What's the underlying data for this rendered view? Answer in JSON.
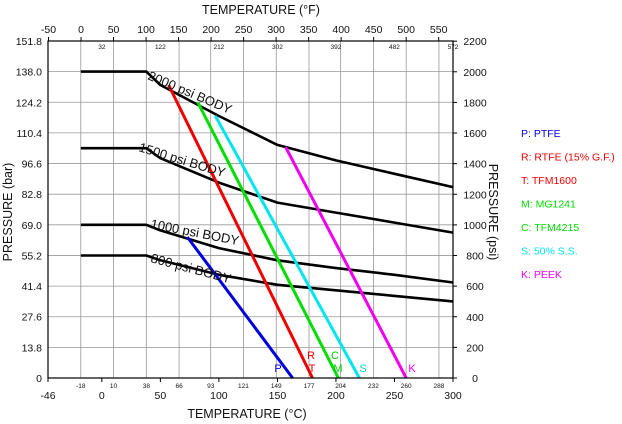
{
  "chart_data": {
    "type": "line",
    "top_axis_title": "TEMPERATURE (°F)",
    "bottom_axis_title": "TEMPERATURE (°C)",
    "left_axis_title": "PRESSURE (bar)",
    "right_axis_title": "PRESSURE (psi)",
    "x_range_c": [
      -46,
      300
    ],
    "y_range_bar": [
      0,
      151.8
    ],
    "bottom_major_ticks": [
      "-46",
      "0",
      "50",
      "100",
      "150",
      "200",
      "250",
      "300"
    ],
    "bottom_minor_ticks": [
      "-18",
      "10",
      "38",
      "66",
      "93",
      "121",
      "149",
      "177",
      "204",
      "232",
      "260",
      "288"
    ],
    "top_major_ticks": [
      "-50",
      "0",
      "50",
      "100",
      "150",
      "200",
      "250",
      "300",
      "350",
      "400",
      "450",
      "500",
      "550"
    ],
    "top_minor_ticks": [
      "32",
      "122",
      "212",
      "302",
      "392",
      "482",
      "572"
    ],
    "left_ticks": [
      "151.8",
      "138.0",
      "124.2",
      "110.4",
      "96.6",
      "82.8",
      "69.0",
      "55.2",
      "41.4",
      "27.6",
      "13.8",
      "0"
    ],
    "right_ticks": [
      "2200",
      "2000",
      "1800",
      "1600",
      "1400",
      "1200",
      "1000",
      "800",
      "600",
      "400",
      "200",
      "0"
    ],
    "body_curves": [
      {
        "label": "2000 psi BODY",
        "points": [
          [
            -18,
            138
          ],
          [
            38,
            138
          ],
          [
            50,
            132
          ],
          [
            100,
            118
          ],
          [
            150,
            105
          ],
          [
            200,
            98
          ],
          [
            250,
            92
          ],
          [
            300,
            86
          ]
        ]
      },
      {
        "label": "1500 psi BODY",
        "points": [
          [
            -18,
            103.5
          ],
          [
            38,
            103.5
          ],
          [
            50,
            99
          ],
          [
            100,
            88
          ],
          [
            150,
            79
          ],
          [
            200,
            74.5
          ],
          [
            250,
            70
          ],
          [
            300,
            65.5
          ]
        ]
      },
      {
        "label": "1000 psi BODY",
        "points": [
          [
            -18,
            69
          ],
          [
            38,
            69
          ],
          [
            50,
            66.5
          ],
          [
            100,
            58.5
          ],
          [
            150,
            53
          ],
          [
            200,
            49.5
          ],
          [
            250,
            46.5
          ],
          [
            300,
            43
          ]
        ]
      },
      {
        "label": "800 psi BODY",
        "points": [
          [
            -18,
            55.2
          ],
          [
            38,
            55.2
          ],
          [
            50,
            53
          ],
          [
            100,
            46.5
          ],
          [
            150,
            42
          ],
          [
            200,
            39.5
          ],
          [
            250,
            37
          ],
          [
            300,
            34.5
          ]
        ]
      }
    ],
    "series": [
      {
        "key": "P",
        "name": "PTFE",
        "legend": "P: PTFE",
        "color": "#0000dd",
        "points": [
          [
            73,
            63.5
          ],
          [
            163,
            0
          ]
        ]
      },
      {
        "key": "R",
        "name": "RTFE (15% G.F.)",
        "legend": "R: RTFE (15% G.F.)",
        "color": "#ee0000",
        "points": [
          [
            57,
            132
          ],
          [
            180,
            0
          ]
        ]
      },
      {
        "key": "T",
        "name": "TFM1600",
        "legend": "T: TFM1600",
        "color": "#ee0000",
        "points": [
          [
            57,
            132
          ],
          [
            180,
            0
          ]
        ]
      },
      {
        "key": "M",
        "name": "MG1241",
        "legend": "M: MG1241",
        "color": "#00dd00",
        "points": [
          [
            82,
            124.2
          ],
          [
            202,
            0
          ]
        ]
      },
      {
        "key": "C",
        "name": "TFM4215",
        "legend": "C: TFM4215",
        "color": "#00dd00",
        "points": [
          [
            82,
            124.2
          ],
          [
            202,
            0
          ]
        ]
      },
      {
        "key": "S",
        "name": "50% S.S.",
        "legend": "S: 50% S.S.",
        "color": "#00e5ee",
        "points": [
          [
            97,
            118
          ],
          [
            220,
            0
          ]
        ]
      },
      {
        "key": "K",
        "name": "PEEK",
        "legend": "K: PEEK",
        "color": "#ee00ee",
        "points": [
          [
            157,
            104
          ],
          [
            260,
            0
          ]
        ]
      }
    ],
    "end_labels": [
      {
        "text": "P",
        "color": "#0000dd"
      },
      {
        "text": "R",
        "color": "#ee0000"
      },
      {
        "text": "T",
        "color": "#ee0000"
      },
      {
        "text": "C",
        "color": "#00cc00"
      },
      {
        "text": "M",
        "color": "#00cc00"
      },
      {
        "text": "S",
        "color": "#00d5dd"
      },
      {
        "text": "K",
        "color": "#ee00ee"
      }
    ]
  }
}
